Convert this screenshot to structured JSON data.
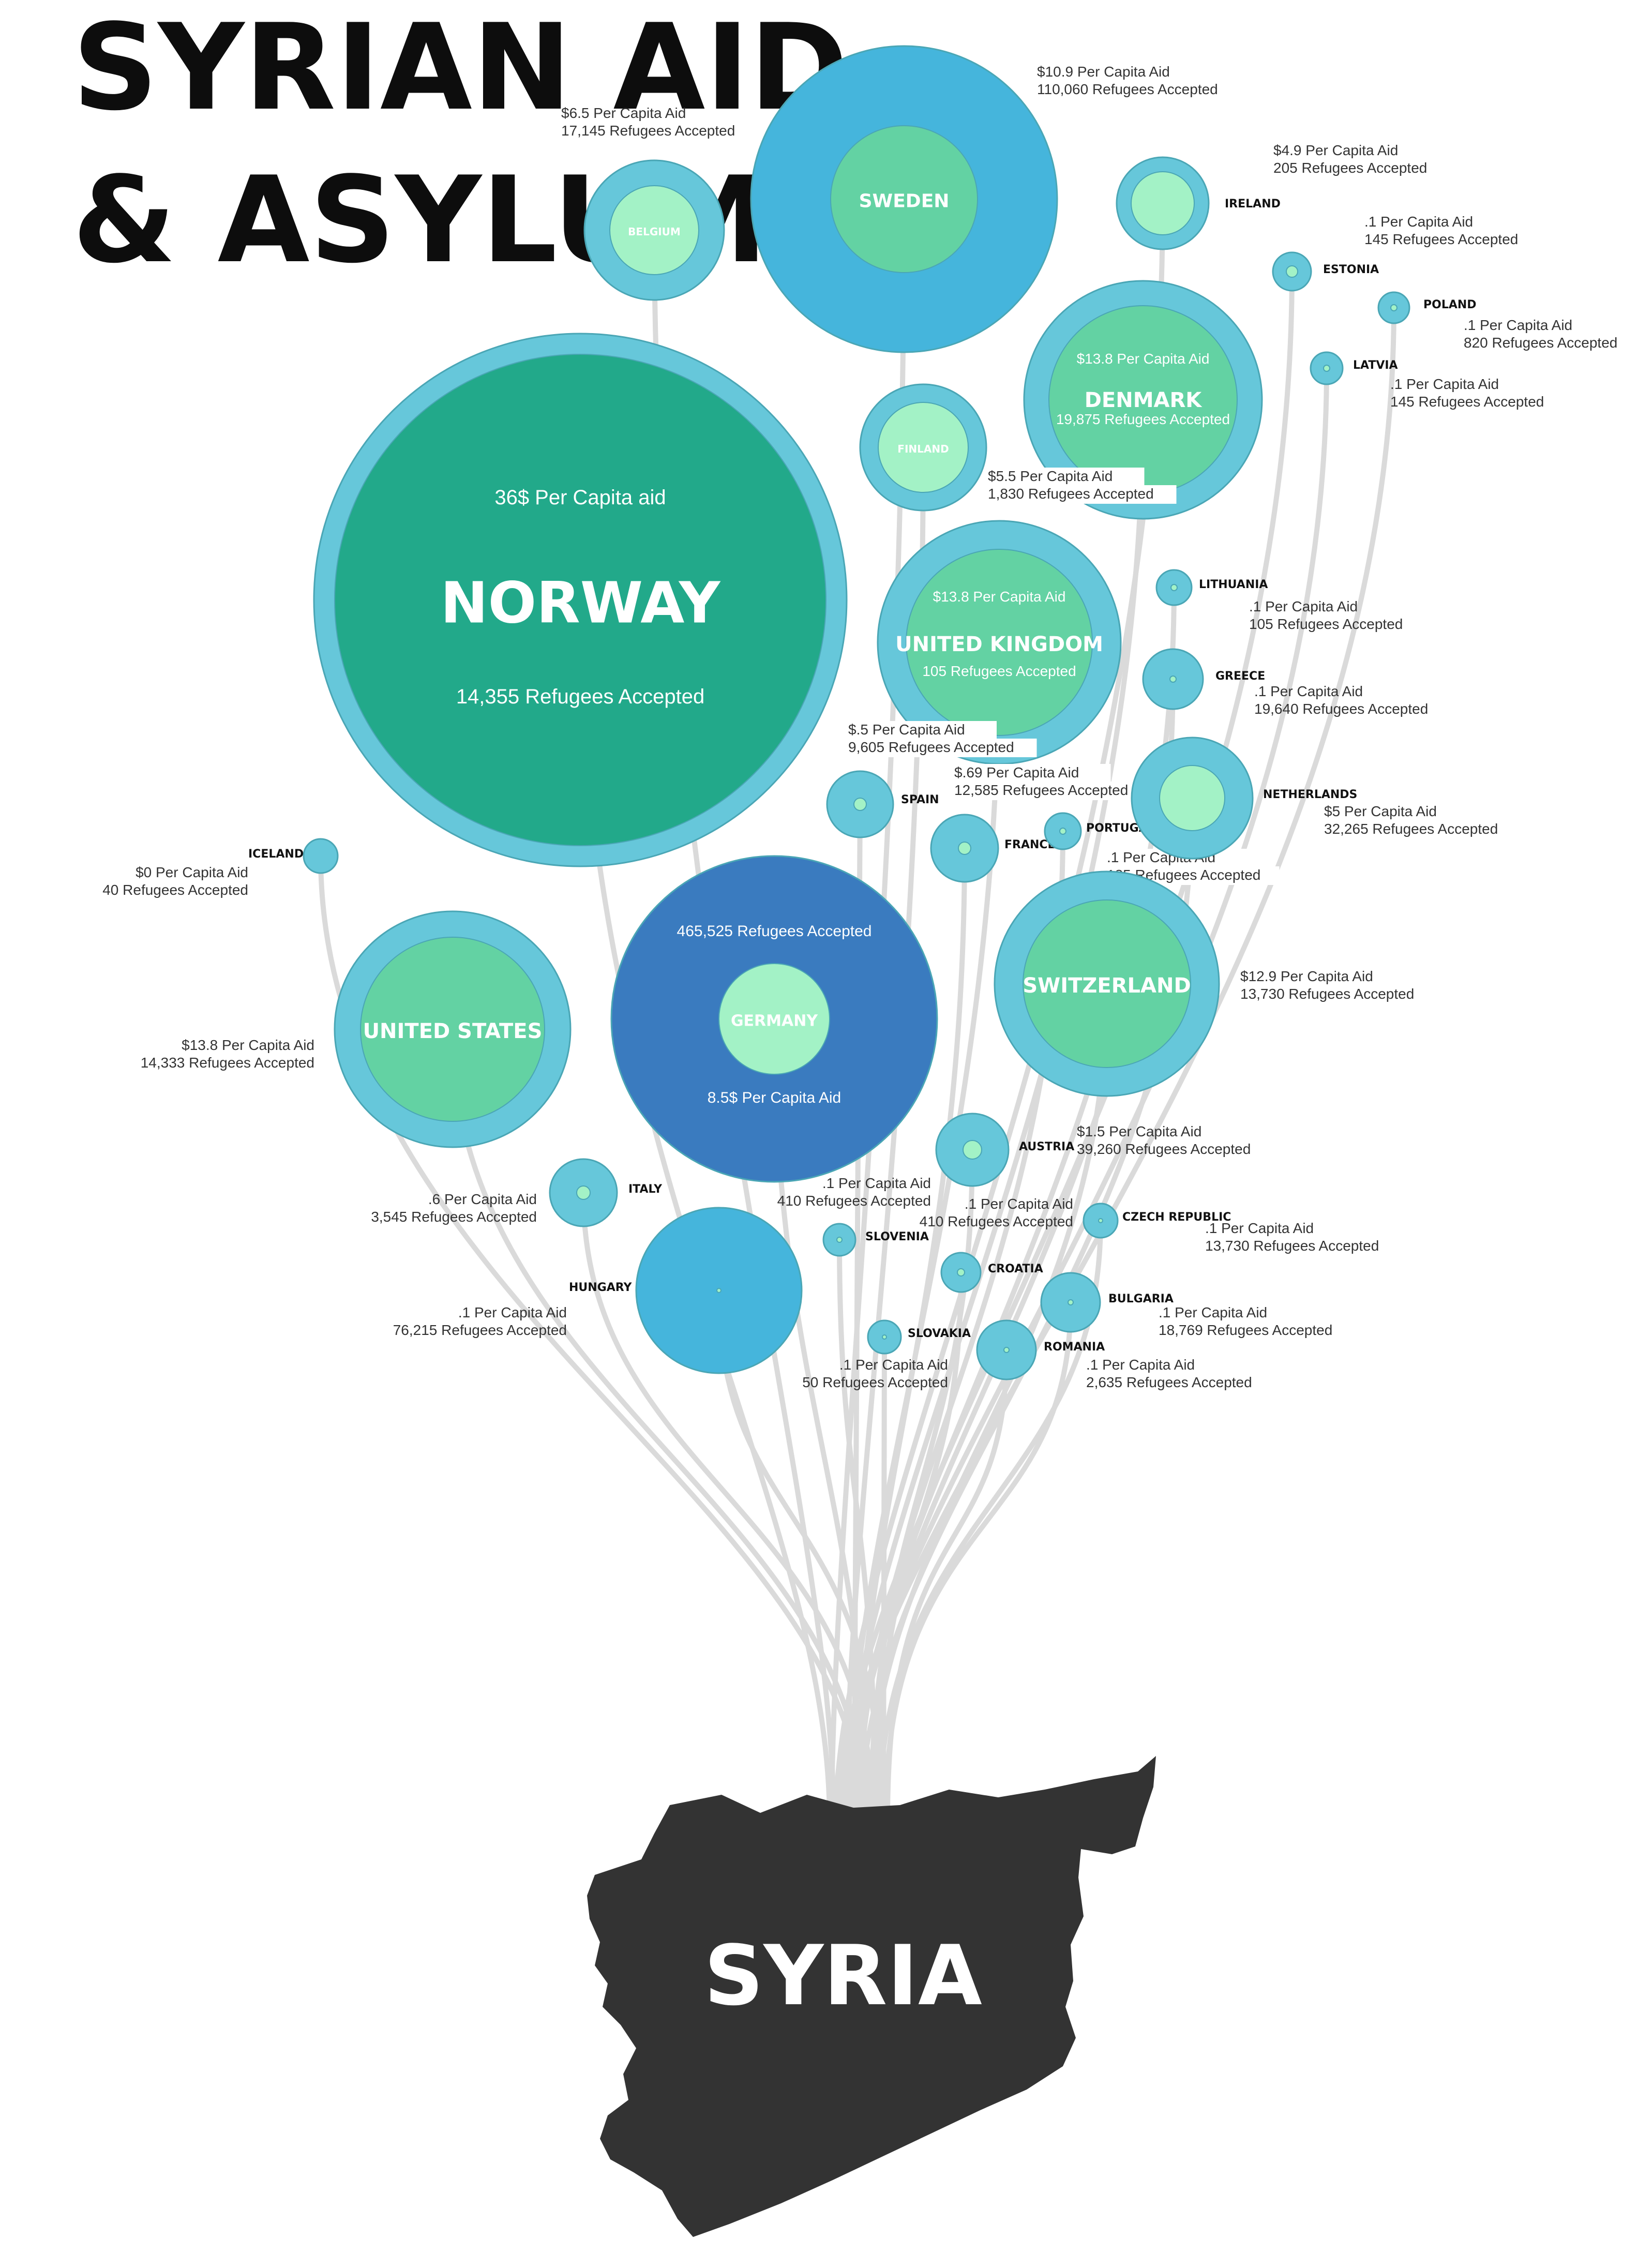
{
  "title": {
    "line1": "SYRIAN AID",
    "line2": "& ASYLUM"
  },
  "origin": {
    "label": "SYRIA",
    "color": "#333333"
  },
  "colors": {
    "ring": "#66c7da",
    "ring_dark": "#45b5dc",
    "core": "#63d2a3",
    "core_light": "#a3f2c6",
    "core_dark": "#22a98a",
    "germany": "#3a7bbf",
    "stroke": "#4aa6b5",
    "line": "#dadada"
  },
  "countries": [
    {
      "name": "NORWAY",
      "aid": "36$ Per Capita aid",
      "refugees": "14,355 Refugees Accepted"
    },
    {
      "name": "SWEDEN",
      "aid": "$10.9 Per Capita Aid",
      "refugees": "110,060 Refugees Accepted"
    },
    {
      "name": "BELGIUM",
      "aid": "$6.5 Per Capita Aid",
      "refugees": "17,145 Refugees Accepted"
    },
    {
      "name": "IRELAND",
      "aid": "$4.9 Per Capita Aid",
      "refugees": "205 Refugees Accepted"
    },
    {
      "name": "ESTONIA",
      "aid": ".1 Per Capita Aid",
      "refugees": "145 Refugees Accepted"
    },
    {
      "name": "POLAND",
      "aid": ".1 Per Capita Aid",
      "refugees": "820 Refugees Accepted"
    },
    {
      "name": "LATVIA",
      "aid": ".1 Per Capita Aid",
      "refugees": "145 Refugees Accepted"
    },
    {
      "name": "DENMARK",
      "aid": "$13.8 Per Capita Aid",
      "refugees": "19,875 Refugees Accepted"
    },
    {
      "name": "FINLAND",
      "aid": "$5.5 Per Capita Aid",
      "refugees": "1,830 Refugees Accepted"
    },
    {
      "name": "UNITED KINGDOM",
      "aid": "$13.8 Per Capita Aid",
      "refugees": "105 Refugees Accepted"
    },
    {
      "name": "LITHUANIA",
      "aid": ".1 Per Capita Aid",
      "refugees": "105 Refugees Accepted"
    },
    {
      "name": "GREECE",
      "aid": ".1 Per Capita Aid",
      "refugees": "19,640 Refugees Accepted"
    },
    {
      "name": "SPAIN",
      "aid": "$.5 Per Capita Aid",
      "refugees": "9,605 Refugees Accepted"
    },
    {
      "name": "FRANCE",
      "aid": "$.69 Per Capita Aid",
      "refugees": "12,585 Refugees Accepted"
    },
    {
      "name": "PORTUGAL",
      "aid": ".1 Per Capita Aid",
      "refugees": "185 Refugees Accepted"
    },
    {
      "name": "NETHERLANDS",
      "aid": "$5 Per Capita Aid",
      "refugees": "32,265 Refugees Accepted"
    },
    {
      "name": "ICELAND",
      "aid": "$0 Per Capita Aid",
      "refugees": "40 Refugees Accepted"
    },
    {
      "name": "UNITED STATES",
      "aid": "$13.8 Per Capita Aid",
      "refugees": "14,333 Refugees Accepted"
    },
    {
      "name": "GERMANY",
      "aid": "8.5$ Per Capita Aid",
      "refugees": "465,525 Refugees Accepted"
    },
    {
      "name": "SWITZERLAND",
      "aid": "$12.9 Per Capita Aid",
      "refugees": "13,730 Refugees Accepted"
    },
    {
      "name": "AUSTRIA",
      "aid": "$1.5 Per Capita Aid",
      "refugees": "39,260 Refugees Accepted"
    },
    {
      "name": "ITALY",
      "aid": ".6 Per Capita Aid",
      "refugees": "3,545 Refugees Accepted"
    },
    {
      "name": "SLOVENIA",
      "aid": ".1 Per Capita Aid",
      "refugees": "410 Refugees Accepted"
    },
    {
      "name": "CROATIA",
      "aid": ".1 Per Capita Aid",
      "refugees": "410 Refugees Accepted"
    },
    {
      "name": "CZECH REPUBLIC",
      "aid": ".1 Per Capita Aid",
      "refugees": "13,730 Refugees Accepted"
    },
    {
      "name": "HUNGARY",
      "aid": ".1 Per Capita Aid",
      "refugees": "76,215 Refugees Accepted"
    },
    {
      "name": "SLOVAKIA",
      "aid": ".1 Per Capita Aid",
      "refugees": "50 Refugees Accepted"
    },
    {
      "name": "BULGARIA",
      "aid": ".1 Per Capita Aid",
      "refugees": "18,769 Refugees Accepted"
    },
    {
      "name": "ROMANIA",
      "aid": ".1 Per Capita Aid",
      "refugees": "2,635 Refugees Accepted"
    }
  ]
}
